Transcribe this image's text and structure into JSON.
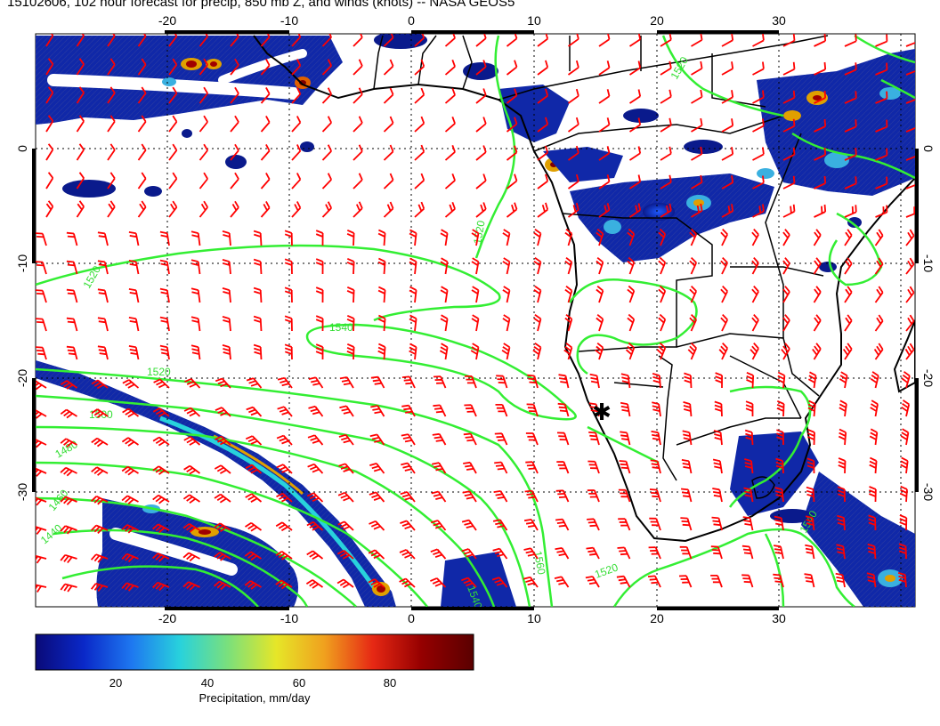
{
  "title": "15102606, 102 hour forecast for precip, 850 mb Z, and winds (knots) -- NASA GEOS5",
  "colors": {
    "wind_barbs": "#ff0000",
    "height_contours": "#33ee33",
    "coastlines": "#000000",
    "grid": "#000000",
    "precip_low": "#0a1a8c",
    "precip_high": "#7a0000"
  },
  "x_ticks": [
    "-20",
    "-10",
    "0",
    "10",
    "20",
    "30"
  ],
  "y_ticks": [
    "0",
    "-10",
    "-20",
    "-30"
  ],
  "contour_labels": [
    "1520",
    "1520",
    "1540",
    "1520",
    "1500",
    "1480",
    "1460",
    "1440",
    "1540",
    "1560",
    "1520",
    "1520",
    "1540"
  ],
  "marker": {
    "name": "station-marker",
    "symbol": "✱"
  },
  "colorbar": {
    "ticks": [
      "20",
      "40",
      "60",
      "80"
    ],
    "label": "Precipitation, mm/day",
    "stops": [
      "#0a0a78",
      "#0a28c8",
      "#1e78f0",
      "#28d2dc",
      "#7be07b",
      "#e6e628",
      "#f0a01e",
      "#e62814",
      "#960000",
      "#5a0000"
    ]
  }
}
